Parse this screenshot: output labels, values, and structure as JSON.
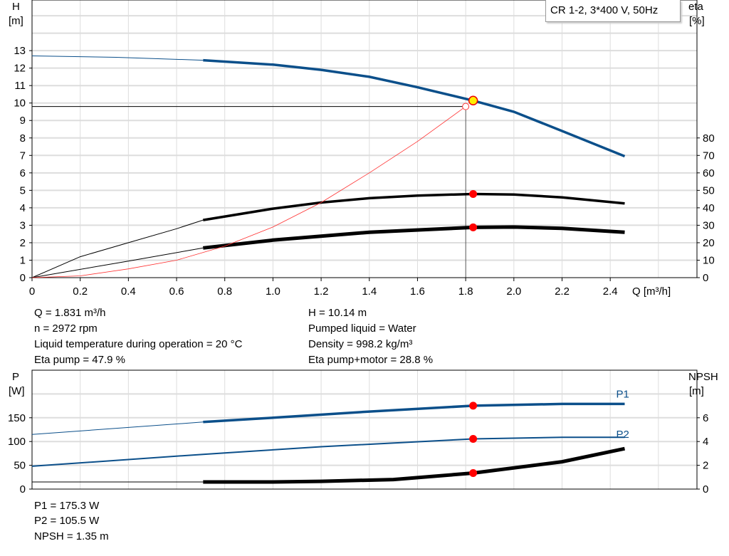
{
  "chart_data": [
    {
      "type": "line",
      "title": "CR 1-2, 3*400 V, 50Hz",
      "xlabel": "Q [m³/h]",
      "xlim": [
        0,
        2.76
      ],
      "xticks": [
        0,
        0.2,
        0.4,
        0.6,
        0.8,
        1.0,
        1.2,
        1.4,
        1.6,
        1.8,
        2.0,
        2.2,
        2.4
      ],
      "ylabel_left": {
        "name": "H",
        "unit": "[m]"
      },
      "ylim_left": [
        0,
        15.9
      ],
      "yticks_left": [
        0,
        1,
        2,
        3,
        4,
        5,
        6,
        7,
        8,
        9,
        10,
        11,
        12,
        13
      ],
      "ylabel_right": {
        "name": "eta",
        "unit": "[%]"
      },
      "ylim_right": [
        0,
        159
      ],
      "yticks_right": [
        0,
        10,
        20,
        30,
        40,
        50,
        60,
        70,
        80
      ],
      "grid": true,
      "series": [
        {
          "axis": "left",
          "color": "#0b4f8a",
          "thick_from": 0.71,
          "x": [
            0,
            0.35,
            0.71,
            1.0,
            1.2,
            1.4,
            1.6,
            1.831,
            2.0,
            2.2,
            2.46
          ],
          "y": [
            12.7,
            12.62,
            12.45,
            12.2,
            11.9,
            11.5,
            10.9,
            10.14,
            9.5,
            8.4,
            6.95
          ]
        },
        {
          "axis": "right",
          "color": "#000000",
          "thick_from": 0.71,
          "x": [
            0,
            0.2,
            0.4,
            0.6,
            0.71,
            1.0,
            1.2,
            1.4,
            1.6,
            1.831,
            2.0,
            2.2,
            2.46
          ],
          "y": [
            0,
            12,
            20,
            28,
            33,
            39.5,
            43,
            45.5,
            47,
            47.9,
            47.6,
            46,
            42.5
          ]
        },
        {
          "axis": "right",
          "color": "#000000",
          "thick_from": 0.71,
          "thick": true,
          "x": [
            0,
            0.4,
            0.71,
            1.0,
            1.4,
            1.831,
            2.0,
            2.2,
            2.46
          ],
          "y": [
            0,
            9.5,
            17,
            21.5,
            26,
            28.8,
            29,
            28.2,
            26
          ]
        },
        {
          "axis": "left",
          "color": "#ff3030",
          "thin": true,
          "x": [
            0,
            0.2,
            0.4,
            0.6,
            0.8,
            1.0,
            1.2,
            1.4,
            1.6,
            1.8
          ],
          "y": [
            0,
            0.1,
            0.5,
            1.0,
            1.8,
            2.9,
            4.3,
            6.0,
            7.8,
            9.8
          ]
        }
      ],
      "operating_point": {
        "Q": 1.831,
        "H": 10.14,
        "eta_pump": 47.9,
        "eta_total": 28.8
      },
      "system_point": {
        "Q": 1.8,
        "H": 9.8
      }
    },
    {
      "type": "line",
      "xlim": [
        0,
        2.76
      ],
      "ylabel_left": {
        "name": "P",
        "unit": "[W]"
      },
      "ylim_left": [
        0,
        250
      ],
      "yticks_left": [
        0,
        50,
        100,
        150
      ],
      "ylabel_right": {
        "name": "NPSH",
        "unit": "[m]"
      },
      "ylim_right": [
        0,
        10
      ],
      "yticks_right": [
        0,
        2,
        4,
        6
      ],
      "grid": true,
      "series": [
        {
          "name": "P1",
          "axis": "left",
          "color": "#0b4f8a",
          "thick_from": 0.71,
          "x": [
            0,
            0.71,
            1.0,
            1.4,
            1.831,
            2.2,
            2.46
          ],
          "y": [
            115,
            141,
            150,
            163,
            175.3,
            179,
            179
          ]
        },
        {
          "name": "P2",
          "axis": "left",
          "color": "#0b4f8a",
          "x": [
            0,
            0.71,
            1.2,
            1.831,
            2.2,
            2.46
          ],
          "y": [
            48,
            73,
            89,
            105.5,
            109,
            109
          ]
        },
        {
          "axis": "right",
          "color": "#000000",
          "thick_from": 0.71,
          "thick": true,
          "x": [
            0,
            0.71,
            1.0,
            1.2,
            1.5,
            1.831,
            2.2,
            2.46
          ],
          "y": [
            0.6,
            0.6,
            0.6,
            0.65,
            0.8,
            1.35,
            2.3,
            3.4
          ]
        }
      ],
      "operating_point": {
        "Q": 1.831,
        "P1": 175.3,
        "P2": 105.5,
        "NPSH": 1.35
      }
    }
  ],
  "info": {
    "q": "Q = 1.831 m³/h",
    "n": "n = 2972 rpm",
    "temp": "Liquid temperature during operation = 20 °C",
    "eta_pump": "Eta pump = 47.9 %",
    "h": "H = 10.14 m",
    "liquid": "Pumped liquid = Water",
    "density": "Density = 998.2 kg/m³",
    "eta_total": "Eta pump+motor = 28.8 %",
    "p1": "P1 = 175.3 W",
    "p2": "P2 = 105.5 W",
    "npsh": "NPSH = 1.35 m"
  }
}
